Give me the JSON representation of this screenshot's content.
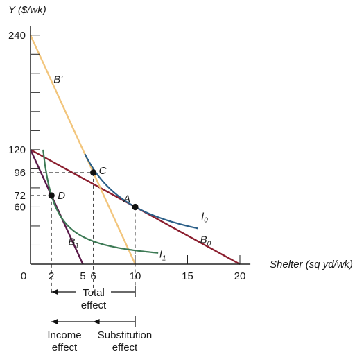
{
  "chart_data": {
    "type": "line",
    "xlabel": "Shelter (sq yd/wk)",
    "ylabel": "Y ($/wk)",
    "xlim": [
      0,
      21
    ],
    "ylim": [
      0,
      247
    ],
    "x_ticks": [
      {
        "value": 0,
        "label": "0"
      },
      {
        "value": 2,
        "label": "2"
      },
      {
        "value": 5,
        "label": "5"
      },
      {
        "value": 6,
        "label": "6"
      },
      {
        "value": 10,
        "label": "10"
      },
      {
        "value": 15,
        "label": "15"
      },
      {
        "value": 20,
        "label": "20"
      }
    ],
    "y_ticks": [
      {
        "value": 60,
        "label": "60"
      },
      {
        "value": 72,
        "label": "72"
      },
      {
        "value": 96,
        "label": "96"
      },
      {
        "value": 120,
        "label": "120"
      },
      {
        "value": 240,
        "label": "240"
      }
    ],
    "series": [
      {
        "name": "B0",
        "label": "B",
        "sub": "0",
        "color": "#8b1e2e",
        "kind": "budget",
        "x": [
          0,
          20
        ],
        "y": [
          120,
          0
        ],
        "label_at": [
          16.2,
          22
        ]
      },
      {
        "name": "B1",
        "label": "B",
        "sub": "1",
        "color": "#5a1a4a",
        "kind": "budget",
        "x": [
          0,
          5
        ],
        "y": [
          120,
          0
        ],
        "label_at": [
          3.6,
          20
        ]
      },
      {
        "name": "B'",
        "label": "B'",
        "sub": "",
        "color": "#f2c57c",
        "kind": "budget",
        "x": [
          0,
          10
        ],
        "y": [
          240,
          0
        ],
        "label_at": [
          2.2,
          190
        ]
      },
      {
        "name": "I0",
        "label": "I",
        "sub": "0",
        "color": "#2b5f88",
        "kind": "indifference",
        "k": 600,
        "x_range": [
          5.2,
          16
        ],
        "label_at": [
          16.3,
          47
        ]
      },
      {
        "name": "I1",
        "label": "I",
        "sub": "1",
        "color": "#3d7a55",
        "kind": "indifference",
        "k": 144,
        "x_range": [
          1.2,
          12.2
        ],
        "label_at": [
          12.3,
          7
        ]
      }
    ],
    "points": [
      {
        "label": "A",
        "x": 10,
        "y": 60
      },
      {
        "label": "C",
        "x": 6,
        "y": 96
      },
      {
        "label": "D",
        "x": 2,
        "y": 72
      }
    ],
    "annotations": {
      "total_effect": "Total effect",
      "income_effect": "Income effect",
      "substitution_effect": "Substitution effect"
    }
  }
}
